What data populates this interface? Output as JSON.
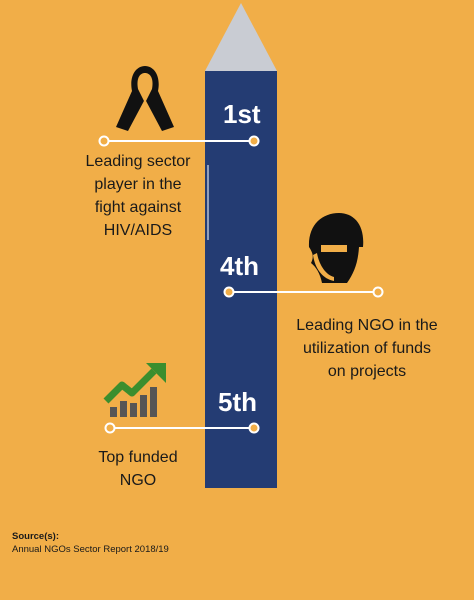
{
  "colors": {
    "background": "#F1AE48",
    "pillar": "#243C73",
    "pillar_cap": "#C9CCD3",
    "rank_text": "#FFFFFF",
    "icon_black": "#111111",
    "chart_green": "#3B8E2E"
  },
  "achievements": [
    {
      "rank": "1st",
      "label_lines": [
        "Leading sector",
        "player in the",
        "fight against",
        "HIV/AIDS"
      ],
      "icon": "awareness-ribbon-icon"
    },
    {
      "rank": "4th",
      "label_lines": [
        "Leading NGO in the",
        "utilization of funds",
        "on projects"
      ],
      "icon": "soldier-helmet-head-icon"
    },
    {
      "rank": "5th",
      "label_lines": [
        "Top funded",
        "NGO"
      ],
      "icon": "growth-chart-icon"
    }
  ],
  "source": {
    "heading": "Source(s):",
    "text": "Annual NGOs Sector Report 2018/19"
  }
}
